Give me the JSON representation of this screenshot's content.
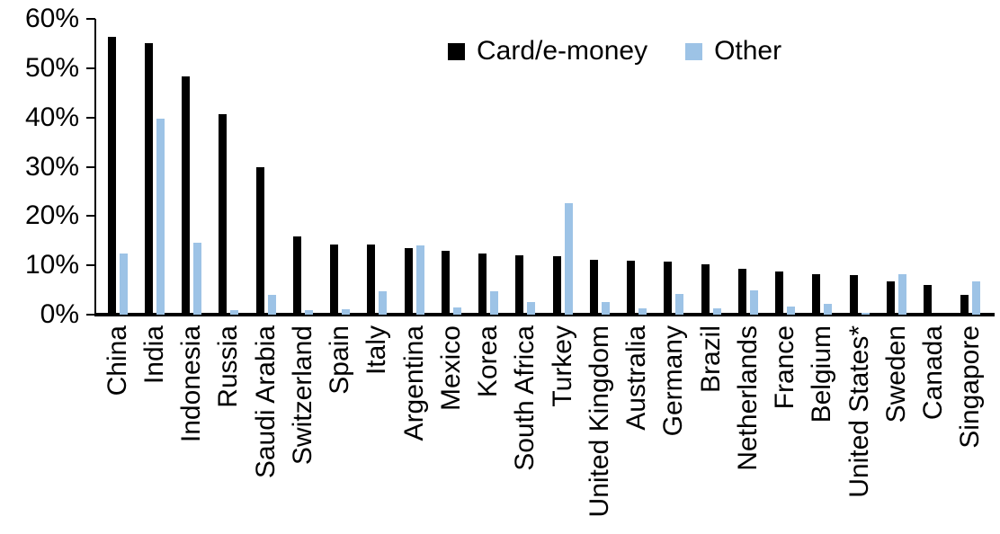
{
  "chart_data": {
    "type": "bar",
    "title": "",
    "xlabel": "",
    "ylabel": "",
    "ylim": [
      0,
      60
    ],
    "ytick_labels": [
      "0%",
      "10%",
      "20%",
      "30%",
      "40%",
      "50%",
      "60%"
    ],
    "grid": false,
    "legend_position": "top-center",
    "categories": [
      "China",
      "India",
      "Indonesia",
      "Russia",
      "Saudi Arabia",
      "Switzerland",
      "Spain",
      "Italy",
      "Argentina",
      "Mexico",
      "Korea",
      "South Africa",
      "Turkey",
      "United Kingdom",
      "Australia",
      "Germany",
      "Brazil",
      "Netherlands",
      "France",
      "Belgium",
      "United States*",
      "Sweden",
      "Canada",
      "Singapore"
    ],
    "series": [
      {
        "name": "Card/e-money",
        "color": "#000000",
        "values": [
          56.3,
          55.1,
          48.3,
          40.6,
          29.9,
          15.8,
          14.3,
          14.2,
          13.5,
          13.0,
          12.4,
          12.0,
          11.8,
          11.2,
          11.0,
          10.8,
          10.2,
          9.3,
          8.7,
          8.3,
          8.1,
          6.7,
          6.1,
          4.0
        ]
      },
      {
        "name": "Other",
        "color": "#9DC3E6",
        "values": [
          12.4,
          39.8,
          14.6,
          1.0,
          4.0,
          0.9,
          1.1,
          4.7,
          14.0,
          1.5,
          4.7,
          2.6,
          22.7,
          2.5,
          1.2,
          4.2,
          1.3,
          5.0,
          1.7,
          2.2,
          0.3,
          8.3,
          0.0,
          6.8
        ]
      }
    ]
  }
}
